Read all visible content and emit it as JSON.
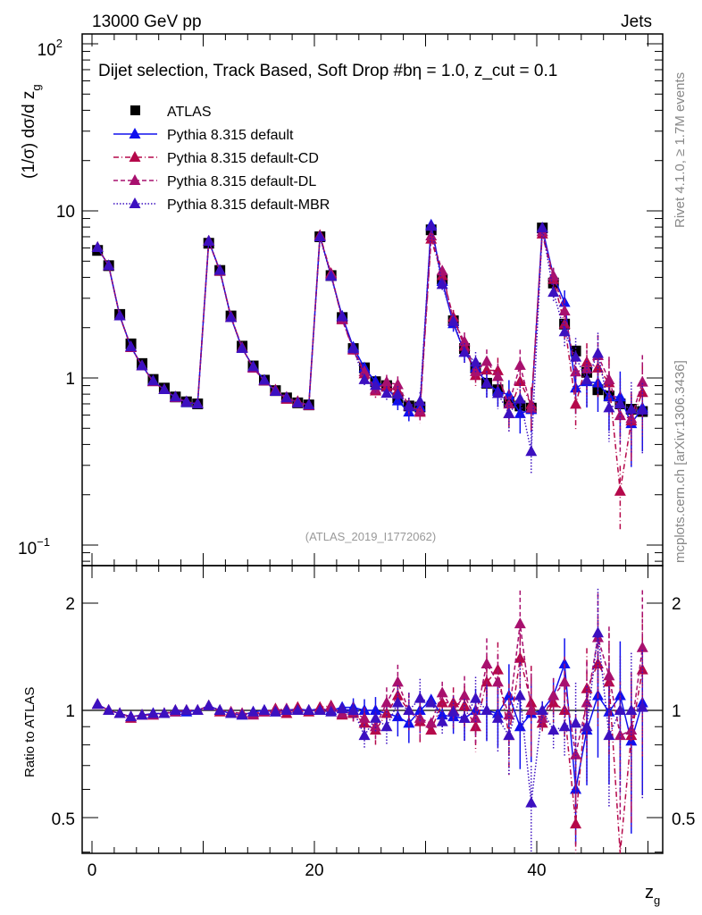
{
  "header": {
    "left": "13000 GeV pp",
    "right": "Jets"
  },
  "side_text": {
    "top": "Rivet 4.1.0, ≥ 1.7M events",
    "bottom": "mcplots.cern.ch [arXiv:1306.3436]"
  },
  "chart_data": [
    {
      "type": "line",
      "panel": "main",
      "title": "Dijet selection, Track Based, Soft Drop #bη = 1.0, z_cut = 0.1",
      "title_main": "Dijet selection, Track Based, Soft Drop #bη = 1.0, z",
      "title_sub": "cut",
      "title_tail": " = 0.1",
      "ylabel": "(1/σ) dσ/d z",
      "ylabel_sub": "g",
      "yscale": "log",
      "ylim": [
        0.08,
        120
      ],
      "xlim": [
        -0.9,
        50.3
      ],
      "ytick_labels": [
        "10",
        "1"
      ],
      "ytick_exp_labels": [
        {
          "base": "10",
          "exp": "2"
        },
        {
          "base": "10",
          "exp": "−1"
        }
      ],
      "annotation": "(ATLAS_2019_I1772062)",
      "legend_position": "top-left",
      "x": [
        0.5,
        1.5,
        2.5,
        3.5,
        4.5,
        5.5,
        6.5,
        7.5,
        8.5,
        9.5,
        10.5,
        11.5,
        12.5,
        13.5,
        14.5,
        15.5,
        16.5,
        17.5,
        18.5,
        19.5,
        20.5,
        21.5,
        22.5,
        23.5,
        24.5,
        25.5,
        26.5,
        27.5,
        28.5,
        29.5,
        30.5,
        31.5,
        32.5,
        33.5,
        34.5,
        35.5,
        36.5,
        37.5,
        38.5,
        39.5,
        40.5,
        41.5,
        42.5,
        43.5,
        44.5,
        45.5,
        46.5,
        47.5,
        48.5,
        49.5
      ],
      "data": {
        "name": "ATLAS",
        "values": [
          5.8,
          4.7,
          2.4,
          1.6,
          1.22,
          0.98,
          0.87,
          0.77,
          0.72,
          0.7,
          6.4,
          4.4,
          2.35,
          1.55,
          1.18,
          0.97,
          0.84,
          0.76,
          0.71,
          0.69,
          7.0,
          4.1,
          2.3,
          1.5,
          1.15,
          0.95,
          0.9,
          0.76,
          0.68,
          0.67,
          7.7,
          3.9,
          2.2,
          1.5,
          1.15,
          0.93,
          0.85,
          0.72,
          0.68,
          0.66,
          7.9,
          3.7,
          2.1,
          1.45,
          1.08,
          0.85,
          0.78,
          0.7,
          0.65,
          0.63
        ]
      },
      "mc_rel_uncertainty": [
        0.01,
        0.01,
        0.01,
        0.01,
        0.01,
        0.01,
        0.01,
        0.01,
        0.02,
        0.02,
        0.01,
        0.01,
        0.01,
        0.01,
        0.02,
        0.02,
        0.02,
        0.02,
        0.03,
        0.03,
        0.02,
        0.02,
        0.03,
        0.04,
        0.05,
        0.06,
        0.07,
        0.08,
        0.08,
        0.09,
        0.03,
        0.05,
        0.07,
        0.09,
        0.1,
        0.12,
        0.13,
        0.15,
        0.16,
        0.18,
        0.04,
        0.08,
        0.12,
        0.2,
        0.2,
        0.22,
        0.25,
        0.28,
        0.3,
        0.3
      ],
      "legend": [
        "ATLAS",
        "Pythia 8.315 default",
        "Pythia 8.315 default-CD",
        "Pythia 8.315 default-DL",
        "Pythia 8.315 default-MBR"
      ]
    },
    {
      "type": "line",
      "panel": "ratio",
      "ylabel": "Ratio to ATLAS",
      "xlabel": "z",
      "xlabel_sub": "g",
      "yscale": "log",
      "ylim": [
        0.4,
        2.55
      ],
      "xtick_labels": [
        "0",
        "20",
        "40"
      ],
      "xtick_values": [
        0,
        20,
        40
      ],
      "ytick_labels": [
        "2",
        "1",
        "0.5"
      ],
      "ytick_values": [
        2,
        1,
        0.5
      ],
      "series": [
        {
          "name": "Pythia 8.315 default",
          "color": "#1010ee",
          "dash": "",
          "values": [
            1.04,
            1.0,
            0.98,
            0.96,
            0.97,
            0.98,
            0.98,
            0.99,
            0.99,
            1.0,
            1.03,
            1.0,
            0.98,
            0.97,
            0.99,
            1.0,
            0.99,
            1.0,
            1.01,
            1.0,
            1.01,
            1.0,
            1.02,
            1.02,
            1.0,
            1.0,
            0.98,
            0.96,
            0.92,
            1.0,
            1.07,
            0.97,
            0.96,
            0.95,
            1.0,
            1.0,
            0.98,
            1.1,
            0.9,
            0.98,
            1.0,
            1.1,
            1.35,
            0.6,
            0.88,
            1.1,
            0.99,
            1.1,
            0.82,
            1.05
          ]
        },
        {
          "name": "Pythia 8.315 default-CD",
          "color": "#b5084a",
          "dash": "6,3,1,3",
          "values": [
            1.04,
            1.0,
            0.98,
            0.95,
            0.97,
            0.97,
            0.98,
            1.0,
            1.0,
            1.0,
            1.03,
            0.99,
            0.98,
            0.98,
            0.98,
            0.99,
            1.01,
            0.98,
            1.02,
            0.99,
            1.02,
            1.03,
            0.97,
            0.98,
            0.92,
            0.88,
            0.98,
            1.1,
            1.0,
            0.93,
            0.88,
            1.05,
            1.05,
            1.03,
            0.9,
            1.2,
            1.3,
            0.85,
            1.4,
            1.05,
            0.92,
            1.05,
            1.0,
            0.48,
            1.15,
            1.35,
            1.2,
            0.3,
            0.85,
            1.3
          ]
        },
        {
          "name": "Pythia 8.315 default-DL",
          "color": "#a8106e",
          "dash": "5,3",
          "values": [
            1.04,
            1.0,
            0.98,
            0.96,
            0.97,
            0.97,
            0.98,
            0.99,
            1.0,
            1.0,
            1.03,
            1.0,
            0.99,
            0.98,
            0.97,
            0.99,
            1.0,
            1.01,
            1.0,
            1.0,
            1.0,
            1.02,
            0.98,
            0.99,
            0.95,
            0.9,
            1.05,
            1.2,
            1.0,
            0.95,
            0.92,
            1.12,
            1.0,
            1.1,
            0.95,
            1.35,
            1.2,
            0.97,
            1.75,
            1.0,
            0.95,
            1.1,
            1.2,
            0.75,
            1.05,
            1.6,
            1.25,
            0.85,
            0.88,
            1.5
          ]
        },
        {
          "name": "Pythia 8.315 default-MBR",
          "color": "#3c10c0",
          "dash": "1.5,2",
          "values": [
            1.04,
            1.0,
            0.98,
            0.96,
            0.97,
            0.98,
            0.98,
            1.0,
            1.0,
            1.0,
            1.03,
            1.0,
            0.98,
            0.97,
            0.99,
            1.0,
            0.99,
            1.0,
            1.0,
            1.0,
            1.0,
            0.99,
            1.01,
            1.0,
            0.85,
            0.95,
            0.9,
            1.05,
            1.0,
            1.08,
            1.05,
            0.93,
            0.99,
            0.95,
            1.08,
            1.0,
            0.95,
            0.85,
            1.1,
            0.55,
            1.0,
            0.88,
            0.9,
            0.92,
            0.9,
            1.65,
            0.85,
            1.0,
            1.0,
            1.02
          ]
        }
      ]
    }
  ]
}
